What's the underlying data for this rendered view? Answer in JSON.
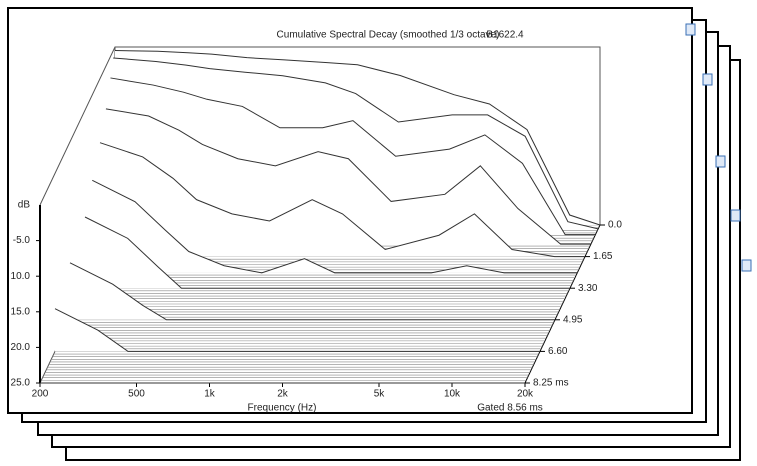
{
  "chart_data": {
    "type": "waterfall",
    "title": "Cumulative Spectral Decay (smoothed 1/3 octave)",
    "subtitle": "B1622.4",
    "xlabel": "Frequency (Hz)",
    "ylabel": "dB",
    "note": "Gated 8.56 ms",
    "log_x": true,
    "color": "#333333",
    "x": [
      200,
      300,
      400,
      500,
      700,
      1000,
      1500,
      2000,
      3000,
      5000,
      7000,
      10000,
      15000,
      20000
    ],
    "xlim": [
      200,
      20000
    ],
    "xticks": [
      200,
      500,
      {
        "value": 1000,
        "label": "1k"
      },
      {
        "value": 2000,
        "label": "2k"
      },
      {
        "value": 5000,
        "label": "5k"
      },
      {
        "value": 10000,
        "label": "10k"
      },
      {
        "value": 20000,
        "label": "20k"
      }
    ],
    "ylim": [
      -25,
      0
    ],
    "yticks": [
      {
        "value": -5,
        "label": "-5.0"
      },
      {
        "value": -10,
        "label": "10.0"
      },
      {
        "value": -15,
        "label": "15.0"
      },
      {
        "value": -20,
        "label": "20.0"
      },
      {
        "value": -25,
        "label": "25.0"
      }
    ],
    "zlim": [
      0,
      8.25
    ],
    "zticks": [
      {
        "value": 0,
        "label": "0.0"
      },
      1.65,
      {
        "value": 3.3,
        "label": "3.30"
      },
      4.95,
      {
        "value": 6.6,
        "label": "6.60"
      },
      {
        "value": 8.25,
        "label": "8.25 ms"
      }
    ],
    "slices": [
      {
        "time": 0,
        "values": [
          -0.5,
          -0.6,
          -0.8,
          -1,
          -1.5,
          -1.8,
          -2.2,
          -2.5,
          -4,
          -6.7,
          -8,
          -11.6,
          -23.6,
          -25
        ]
      },
      {
        "time": 0.2,
        "values": [
          -1,
          -1.5,
          -2,
          -2.5,
          -3,
          -3.5,
          -4.5,
          -6,
          -10,
          -9,
          -9,
          -12,
          -24,
          -25
        ]
      },
      {
        "time": 0.5,
        "values": [
          -3,
          -4,
          -5,
          -6,
          -7,
          -10,
          -10,
          -9,
          -14,
          -13,
          -11,
          -15,
          -25,
          -25
        ]
      },
      {
        "time": 1,
        "values": [
          -6,
          -7,
          -9,
          -11,
          -13,
          -14,
          -12,
          -13,
          -19,
          -18,
          -14,
          -20,
          -25,
          -25
        ]
      },
      {
        "time": 1.65,
        "values": [
          -9,
          -11,
          -14,
          -17,
          -19,
          -20,
          -17,
          -19,
          -24,
          -22,
          -19,
          -24,
          -25,
          -25
        ]
      },
      {
        "time": 2.5,
        "values": [
          -12,
          -15,
          -19,
          -22,
          -24,
          -25,
          -23,
          -25,
          -25,
          -25,
          -24,
          -25,
          -25,
          -25
        ]
      },
      {
        "time": 3.3,
        "values": [
          -15,
          -18,
          -22,
          -25,
          -25,
          -25,
          -25,
          -25,
          -25,
          -25,
          -25,
          -25,
          -25,
          -25
        ]
      },
      {
        "time": 4.95,
        "values": [
          -17,
          -20,
          -23,
          -25,
          -25,
          -25,
          -25,
          -25,
          -25,
          -25,
          -25,
          -25,
          -25,
          -25
        ]
      },
      {
        "time": 6.6,
        "values": [
          -19,
          -22,
          -25,
          -25,
          -25,
          -25,
          -25,
          -25,
          -25,
          -25,
          -25,
          -25,
          -25,
          -25
        ]
      },
      {
        "time": 8.25,
        "values": [
          -25,
          -25,
          -25,
          -25,
          -25,
          -25,
          -25,
          -25,
          -25,
          -25,
          -25,
          -25,
          -25,
          -25
        ]
      }
    ]
  }
}
